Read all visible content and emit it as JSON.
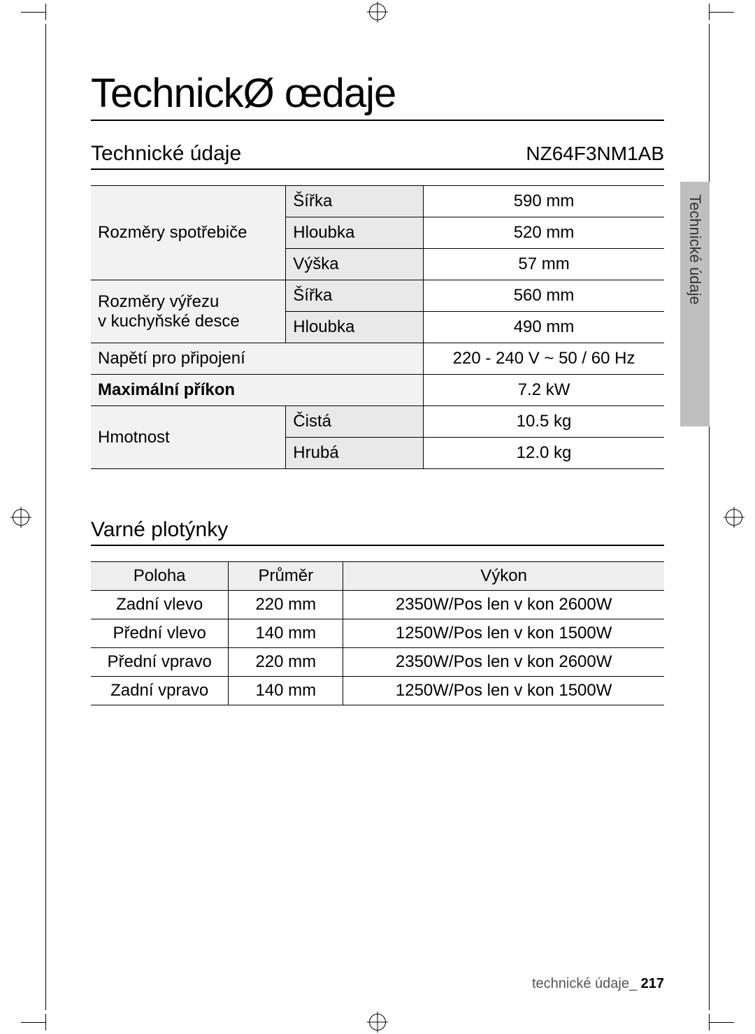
{
  "page_title": "TechnickØ œdaje",
  "section1_title": "Technické údaje",
  "model_number": "NZ64F3NM1AB",
  "side_tab": "Technické údaje",
  "specs_table": {
    "rows": [
      {
        "label": "Rozměry spotřebiče",
        "sub": "Šířka",
        "value": "590 mm",
        "rowspan": 3
      },
      {
        "label": "",
        "sub": "Hloubka",
        "value": "520 mm"
      },
      {
        "label": "",
        "sub": "Výška",
        "value": "57 mm"
      },
      {
        "label": "Rozměry výřezu v kuchyňské desce",
        "sub": "Šířka",
        "value": "560 mm",
        "rowspan": 2,
        "label_lines": [
          "Rozměry výřezu",
          "v kuchyňské desce"
        ]
      },
      {
        "label": "",
        "sub": "Hloubka",
        "value": "490 mm"
      },
      {
        "label": "Napětí pro připojení",
        "sub": null,
        "value": "220 - 240 V ~ 50 / 60 Hz"
      },
      {
        "label": "Maximální příkon",
        "sub": null,
        "value": "7.2 kW",
        "bold_label": true
      },
      {
        "label": "Hmotnost",
        "sub": "Čistá",
        "value": "10.5 kg",
        "rowspan": 2
      },
      {
        "label": "",
        "sub": "Hrubá",
        "value": "12.0 kg"
      }
    ]
  },
  "section2_title": "Varné plotýnky",
  "zones_table": {
    "columns": [
      "Poloha",
      "Průměr",
      "Výkon"
    ],
    "rows": [
      [
        "Zadní vlevo",
        "220 mm",
        "2350W/Pos len  v kon 2600W"
      ],
      [
        "Přední vlevo",
        "140 mm",
        "1250W/Pos len  v kon 1500W"
      ],
      [
        "Přední vpravo",
        "220 mm",
        "2350W/Pos len  v kon 2600W"
      ],
      [
        "Zadní vpravo",
        "140 mm",
        "1250W/Pos len  v kon 1500W"
      ]
    ]
  },
  "footer_text": "technické údaje_",
  "footer_page": "217"
}
